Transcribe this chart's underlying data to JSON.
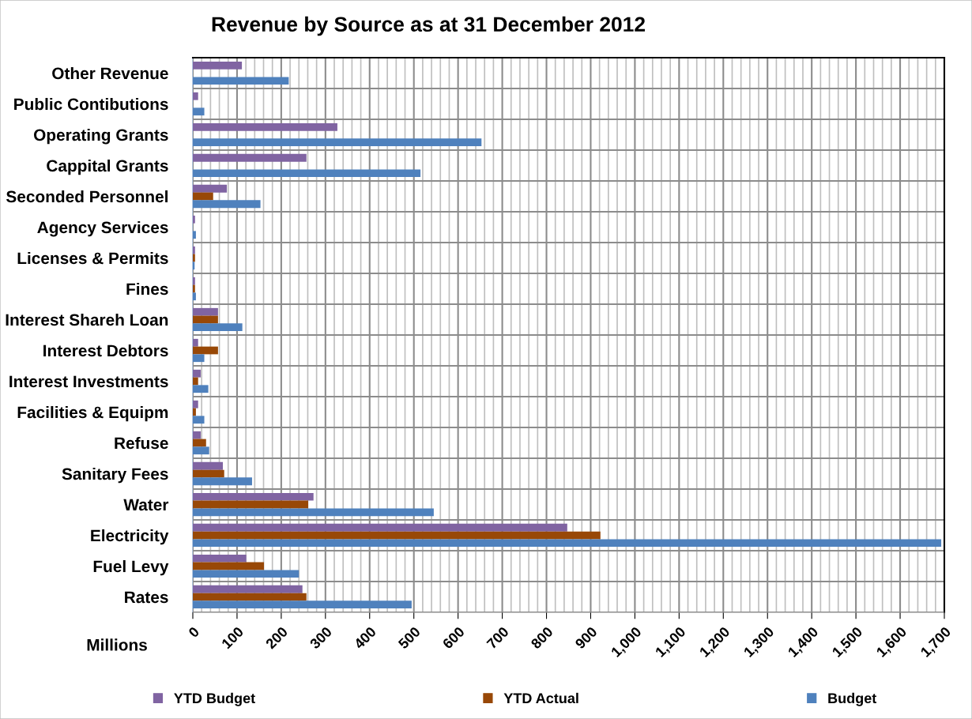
{
  "chart_data": {
    "type": "bar",
    "orientation": "horizontal",
    "title": "Revenue by Source as at 31 December 2012",
    "xlabel": "Millions",
    "categories": [
      "Other Revenue",
      "Public Contibutions",
      "Operating Grants",
      "Cappital Grants",
      "Seconded Personnel",
      "Agency Services",
      "Licenses & Permits",
      "Fines",
      "Interest Shareh Loan",
      "Interest Debtors",
      "Interest Investments",
      "Facilities & Equipm",
      "Refuse",
      "Sanitary Fees",
      "Water",
      "Electricity",
      "Fuel Levy",
      "Rates"
    ],
    "series": [
      {
        "name": "YTD Budget",
        "color": "#8064a2",
        "values": [
          111,
          12,
          327,
          257,
          77,
          5,
          5,
          5,
          57,
          12,
          18,
          12,
          18,
          68,
          273,
          847,
          121,
          248
        ]
      },
      {
        "name": "YTD Actual",
        "color": "#984807",
        "values": [
          null,
          null,
          null,
          null,
          46,
          null,
          5,
          5,
          57,
          57,
          12,
          7,
          30,
          71,
          261,
          922,
          161,
          257
        ]
      },
      {
        "name": "Budget",
        "color": "#4f81bd",
        "values": [
          217,
          26,
          653,
          515,
          153,
          7,
          4,
          7,
          112,
          26,
          35,
          26,
          37,
          134,
          545,
          1693,
          240,
          495
        ]
      }
    ],
    "xlim": [
      0,
      1700
    ],
    "xticks": [
      0,
      100,
      200,
      300,
      400,
      500,
      600,
      700,
      800,
      900,
      {
        "value": 1000,
        "label": "1,000"
      },
      {
        "value": 1100,
        "label": "1,100"
      },
      {
        "value": 1200,
        "label": "1,200"
      },
      {
        "value": 1300,
        "label": "1,300"
      },
      {
        "value": 1400,
        "label": "1,400"
      },
      {
        "value": 1500,
        "label": "1,500"
      },
      {
        "value": 1600,
        "label": "1,600"
      },
      {
        "value": 1700,
        "label": "1,700"
      }
    ],
    "grid": true,
    "legend": "bottom"
  }
}
